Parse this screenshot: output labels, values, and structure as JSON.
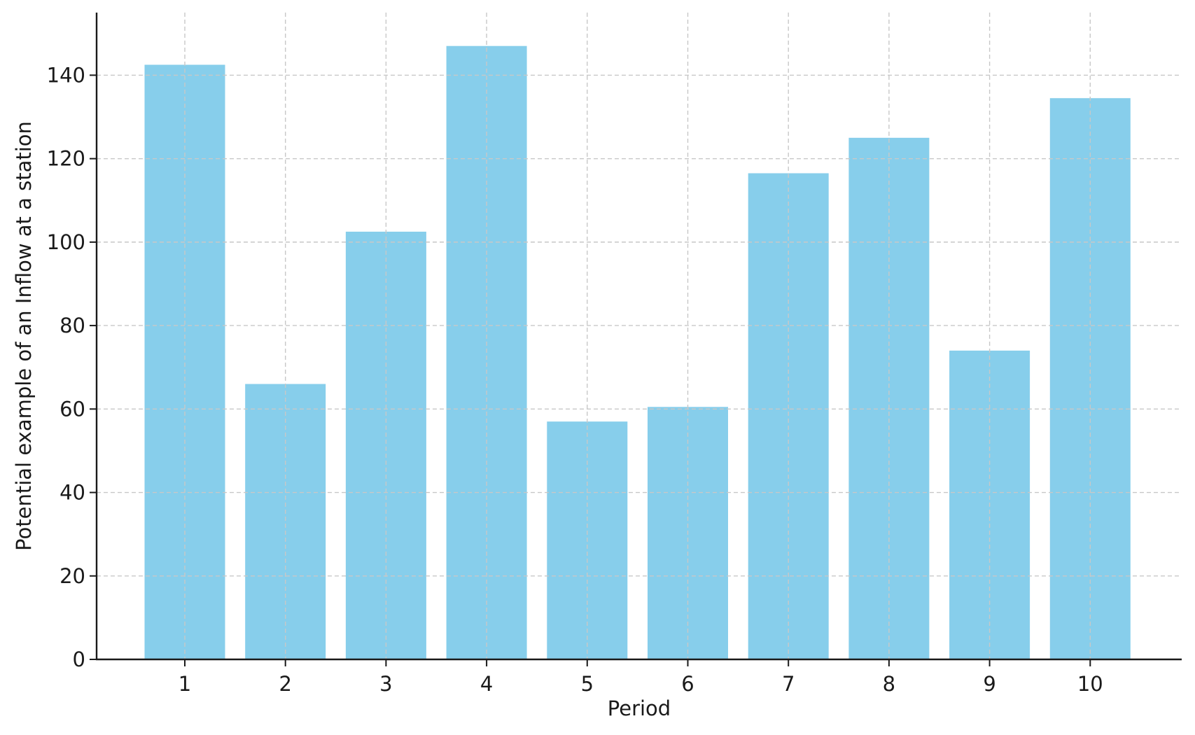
{
  "chart_data": {
    "type": "bar",
    "title": "",
    "xlabel": "Period",
    "ylabel": "Potential example of an Inflow at a station",
    "categories": [
      "1",
      "2",
      "3",
      "4",
      "5",
      "6",
      "7",
      "8",
      "9",
      "10"
    ],
    "values": [
      142.5,
      66.0,
      102.5,
      147.0,
      57.0,
      60.5,
      116.5,
      125.0,
      74.0,
      134.5
    ],
    "ylim": [
      0,
      155
    ],
    "yticks": [
      0,
      20,
      40,
      60,
      80,
      100,
      120,
      140
    ],
    "grid": true,
    "bar_color": "#87ceeb",
    "legend": "none"
  }
}
